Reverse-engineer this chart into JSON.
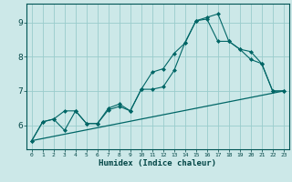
{
  "title": "",
  "xlabel": "Humidex (Indice chaleur)",
  "x_ticks": [
    0,
    1,
    2,
    3,
    4,
    5,
    6,
    7,
    8,
    9,
    10,
    11,
    12,
    13,
    14,
    15,
    16,
    17,
    18,
    19,
    20,
    21,
    22,
    23
  ],
  "background_color": "#cce8e8",
  "grid_color": "#99cccc",
  "line_color": "#006666",
  "ylim": [
    5.3,
    9.55
  ],
  "xlim": [
    -0.5,
    23.5
  ],
  "yticks": [
    6,
    7,
    8,
    9
  ],
  "series1_x": [
    0,
    1,
    2,
    3,
    4,
    5,
    6,
    7,
    8,
    9,
    10,
    11,
    12,
    13,
    14,
    15,
    16,
    17,
    18,
    19,
    20,
    21,
    22,
    23
  ],
  "series1_y": [
    5.55,
    6.1,
    6.18,
    5.85,
    6.42,
    6.05,
    6.05,
    6.5,
    6.62,
    6.42,
    7.05,
    7.05,
    7.12,
    7.6,
    8.42,
    9.05,
    9.15,
    9.25,
    8.45,
    8.22,
    7.92,
    7.8,
    7.0,
    7.0
  ],
  "series2_x": [
    0,
    1,
    2,
    3,
    4,
    5,
    6,
    7,
    8,
    9,
    10,
    11,
    12,
    13,
    14,
    15,
    16,
    17,
    18,
    19,
    20,
    21,
    22,
    23
  ],
  "series2_y": [
    5.55,
    6.1,
    6.18,
    6.42,
    6.42,
    6.05,
    6.05,
    6.45,
    6.55,
    6.42,
    7.05,
    7.55,
    7.65,
    8.1,
    8.4,
    9.05,
    9.1,
    8.45,
    8.45,
    8.22,
    8.15,
    7.8,
    7.0,
    7.0
  ],
  "series3_x": [
    0,
    23
  ],
  "series3_y": [
    5.55,
    7.0
  ]
}
